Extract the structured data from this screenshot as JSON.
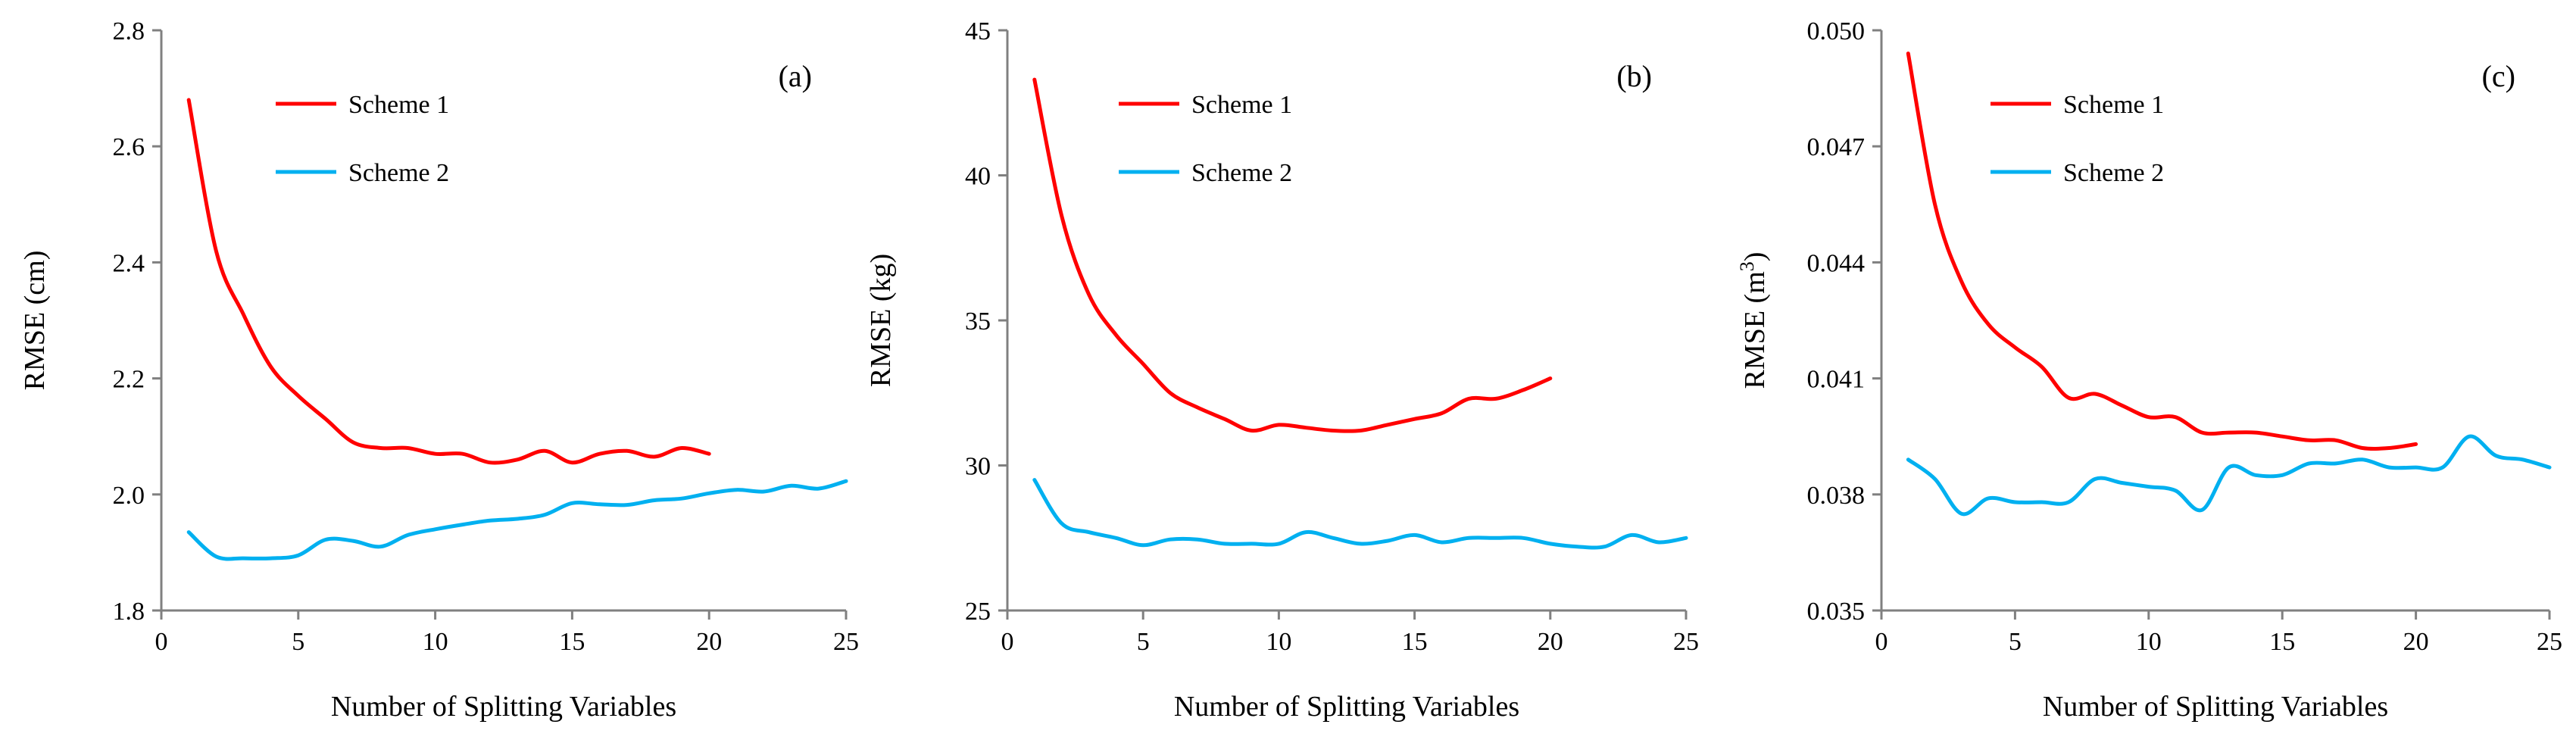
{
  "colors": {
    "scheme1": "#ff0000",
    "scheme2": "#00b0f0",
    "axis": "#808080"
  },
  "chart_data": [
    {
      "type": "line",
      "panel_label": "(a)",
      "xlabel": "Number of Splitting Variables",
      "ylabel": "RMSE (cm)",
      "ylabel_sup": "",
      "xlim": [
        0,
        25
      ],
      "ylim": [
        1.8,
        2.8
      ],
      "xticks": [
        0,
        5,
        10,
        15,
        20,
        25
      ],
      "yticks": [
        "1.8",
        "2.0",
        "2.2",
        "2.4",
        "2.6",
        "2.8"
      ],
      "grid": false,
      "legend_position": "top-center",
      "series": [
        {
          "name": "Scheme 1",
          "color": "#ff0000",
          "x": [
            1,
            2,
            3,
            4,
            5,
            6,
            7,
            8,
            9,
            10,
            11,
            12,
            13,
            14,
            15,
            16,
            17,
            18,
            19,
            20
          ],
          "values": [
            2.68,
            2.42,
            2.31,
            2.22,
            2.17,
            2.13,
            2.09,
            2.08,
            2.08,
            2.07,
            2.07,
            2.055,
            2.06,
            2.075,
            2.055,
            2.07,
            2.075,
            2.065,
            2.08,
            2.07
          ]
        },
        {
          "name": "Scheme 2",
          "color": "#00b0f0",
          "x": [
            1,
            2,
            3,
            4,
            5,
            6,
            7,
            8,
            9,
            10,
            11,
            12,
            13,
            14,
            15,
            16,
            17,
            18,
            19,
            20,
            21,
            22,
            23,
            24,
            25
          ],
          "values": [
            1.935,
            1.893,
            1.89,
            1.89,
            1.895,
            1.922,
            1.92,
            1.91,
            1.93,
            1.94,
            1.948,
            1.955,
            1.958,
            1.965,
            1.985,
            1.983,
            1.982,
            1.99,
            1.993,
            2.002,
            2.008,
            2.005,
            2.015,
            2.01,
            2.023
          ]
        }
      ]
    },
    {
      "type": "line",
      "panel_label": "(b)",
      "xlabel": "Number of Splitting Variables",
      "ylabel": "RMSE (kg)",
      "ylabel_sup": "",
      "xlim": [
        0,
        25
      ],
      "ylim": [
        25,
        45
      ],
      "xticks": [
        0,
        5,
        10,
        15,
        20,
        25
      ],
      "yticks": [
        "25",
        "30",
        "35",
        "40",
        "45"
      ],
      "grid": false,
      "legend_position": "top-center",
      "series": [
        {
          "name": "Scheme 1",
          "color": "#ff0000",
          "x": [
            1,
            2,
            3,
            4,
            5,
            6,
            7,
            8,
            9,
            10,
            11,
            12,
            13,
            14,
            15,
            16,
            17,
            18,
            19,
            20
          ],
          "values": [
            43.3,
            38.6,
            35.9,
            34.5,
            33.5,
            32.5,
            32.0,
            31.6,
            31.2,
            31.4,
            31.3,
            31.2,
            31.2,
            31.4,
            31.6,
            31.8,
            32.3,
            32.3,
            32.6,
            33.0
          ]
        },
        {
          "name": "Scheme 2",
          "color": "#00b0f0",
          "x": [
            1,
            2,
            3,
            4,
            5,
            6,
            7,
            8,
            9,
            10,
            11,
            12,
            13,
            14,
            15,
            16,
            17,
            18,
            19,
            20,
            21,
            22,
            23,
            24,
            25
          ],
          "values": [
            29.5,
            28.0,
            27.7,
            27.5,
            27.25,
            27.45,
            27.45,
            27.3,
            27.3,
            27.3,
            27.7,
            27.5,
            27.3,
            27.4,
            27.6,
            27.35,
            27.5,
            27.5,
            27.5,
            27.3,
            27.2,
            27.2,
            27.6,
            27.35,
            27.5
          ]
        }
      ]
    },
    {
      "type": "line",
      "panel_label": "(c)",
      "xlabel": "Number of Splitting Variables",
      "ylabel": "RMSE (m",
      "ylabel_sup": "3",
      "ylabel_suffix": ")",
      "xlim": [
        0,
        25
      ],
      "ylim": [
        0.035,
        0.05
      ],
      "xticks": [
        0,
        5,
        10,
        15,
        20,
        25
      ],
      "yticks": [
        "0.035",
        "0.038",
        "0.041",
        "0.044",
        "0.047",
        "0.050"
      ],
      "grid": false,
      "legend_position": "top-center",
      "series": [
        {
          "name": "Scheme 1",
          "color": "#ff0000",
          "x": [
            1,
            2,
            3,
            4,
            5,
            6,
            7,
            8,
            9,
            10,
            11,
            12,
            13,
            14,
            15,
            16,
            17,
            18,
            19,
            20
          ],
          "values": [
            0.0494,
            0.0455,
            0.0435,
            0.0424,
            0.0418,
            0.0413,
            0.0405,
            0.0406,
            0.0403,
            0.04,
            0.04,
            0.0396,
            0.0396,
            0.0396,
            0.0395,
            0.0394,
            0.0394,
            0.0392,
            0.0392,
            0.0393
          ]
        },
        {
          "name": "Scheme 2",
          "color": "#00b0f0",
          "x": [
            1,
            2,
            3,
            4,
            5,
            6,
            7,
            8,
            9,
            10,
            11,
            12,
            13,
            14,
            15,
            16,
            17,
            18,
            19,
            20,
            21,
            22,
            23,
            24,
            25
          ],
          "values": [
            0.0389,
            0.0384,
            0.0375,
            0.0379,
            0.0378,
            0.0378,
            0.0378,
            0.0384,
            0.0383,
            0.0382,
            0.0381,
            0.0376,
            0.0387,
            0.0385,
            0.0385,
            0.0388,
            0.0388,
            0.0389,
            0.0387,
            0.0387,
            0.0387,
            0.0395,
            0.039,
            0.0389,
            0.0387
          ]
        }
      ]
    }
  ]
}
